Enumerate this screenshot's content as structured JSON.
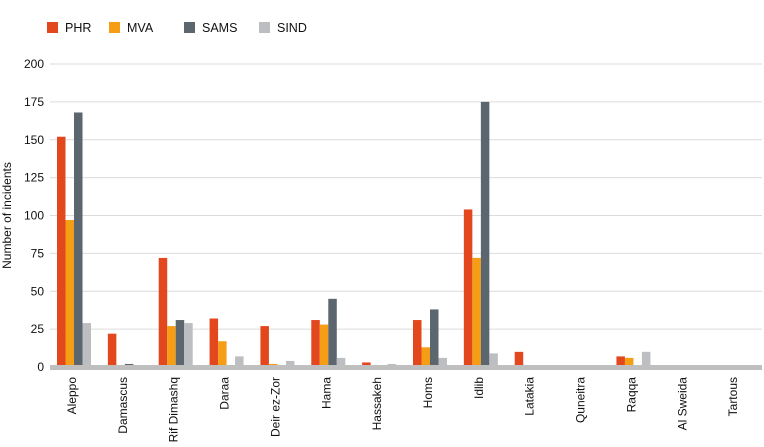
{
  "chart_data": {
    "type": "bar",
    "title": "",
    "xlabel": "",
    "ylabel": "Number of incidents",
    "ylim": [
      0,
      200
    ],
    "yticks": [
      0,
      25,
      50,
      75,
      100,
      125,
      150,
      175,
      200
    ],
    "grid": true,
    "legend_position": "top-left",
    "categories": [
      "Aleppo",
      "Damascus",
      "Rif Dimashq",
      "Daraa",
      "Deir ez-Zor",
      "Hama",
      "Hassakeh",
      "Homs",
      "Idlib",
      "Latakia",
      "Quneitra",
      "Raqqa",
      "Al Sweida",
      "Tartous"
    ],
    "series": [
      {
        "name": "PHR",
        "color": "#e3471e",
        "values": [
          152,
          22,
          72,
          32,
          27,
          31,
          3,
          31,
          104,
          10,
          0,
          7,
          0,
          0
        ]
      },
      {
        "name": "MVA",
        "color": "#f59d14",
        "values": [
          97,
          0,
          27,
          17,
          2,
          28,
          0,
          13,
          72,
          0,
          1,
          6,
          0,
          0
        ]
      },
      {
        "name": "SAMS",
        "color": "#5c666e",
        "values": [
          168,
          2,
          31,
          0,
          0,
          45,
          0,
          38,
          175,
          0,
          0,
          0,
          0,
          0
        ]
      },
      {
        "name": "SIND",
        "color": "#bdbec2",
        "values": [
          29,
          0,
          29,
          7,
          4,
          6,
          2,
          6,
          9,
          0,
          0,
          10,
          0,
          0
        ]
      }
    ]
  }
}
